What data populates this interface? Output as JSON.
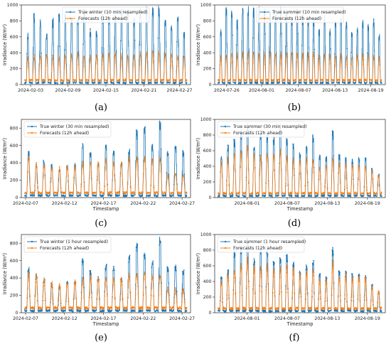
{
  "colors": {
    "true_series": "#1f77b4",
    "forecast_series": "#ff7f0e"
  },
  "chart_data": [
    {
      "type": "line",
      "panel": "(a)",
      "xlabel": "",
      "ylabel": "Irradiance (W/m²)",
      "ylim": [
        0,
        1000
      ],
      "yticks": [
        0,
        200,
        400,
        600,
        800,
        1000
      ],
      "xtick_labels": [
        "2024-02-03",
        "2024-02-09",
        "2024-02-15",
        "2024-02-21",
        "2024-02-27"
      ],
      "x_start_label": "2024-02-02",
      "x_end_label": "2024-02-28",
      "legend_location": "top-center",
      "series": [
        {
          "name": "True winter (10 min resampled)",
          "daily_peaks": [
            660,
            900,
            820,
            640,
            840,
            900,
            900,
            850,
            830,
            960,
            700,
            680,
            890,
            870,
            940,
            960,
            980,
            840,
            970,
            990,
            980,
            990,
            820,
            760,
            870,
            660
          ]
        },
        {
          "name": "Forecasts (12h ahead)",
          "daily_peaks": [
            360,
            380,
            390,
            400,
            370,
            380,
            390,
            400,
            420,
            380,
            370,
            390,
            400,
            410,
            420,
            400,
            380,
            390,
            420,
            440,
            460,
            430,
            420,
            400,
            390,
            380
          ]
        }
      ]
    },
    {
      "type": "line",
      "panel": "(b)",
      "xlabel": "",
      "ylabel": "Irradiance (W/m²)",
      "ylim": [
        0,
        1000
      ],
      "yticks": [
        0,
        200,
        400,
        600,
        800,
        1000
      ],
      "xtick_labels": [
        "2024-07-26",
        "2024-08-01",
        "2024-08-07",
        "2024-08-13",
        "2024-08-19"
      ],
      "x_start_label": "2024-07-22",
      "x_end_label": "2024-08-21",
      "legend_location": "top-center",
      "series": [
        {
          "name": "True summer (10 min resampled)",
          "daily_peaks": [
            700,
            980,
            950,
            820,
            1000,
            990,
            970,
            1000,
            960,
            940,
            880,
            990,
            920,
            870,
            960,
            880,
            860,
            840,
            700,
            860,
            720,
            800,
            860,
            790,
            680,
            720,
            820,
            780,
            840,
            640
          ]
        },
        {
          "name": "Forecasts (12h ahead)",
          "daily_peaks": [
            380,
            400,
            420,
            410,
            430,
            420,
            440,
            430,
            420,
            440,
            410,
            420,
            430,
            440,
            420,
            410,
            400,
            420,
            380,
            400,
            390,
            380,
            400,
            390,
            380,
            390,
            400,
            390,
            380,
            370
          ]
        }
      ]
    },
    {
      "type": "line",
      "panel": "(c)",
      "xlabel": "Timestamp",
      "ylabel": "Irradiance (W/m²)",
      "ylim": [
        0,
        900
      ],
      "yticks": [
        0,
        200,
        400,
        600,
        800
      ],
      "xtick_labels": [
        "2024-02-07",
        "2024-02-12",
        "2024-02-17",
        "2024-02-22",
        "2024-02-27"
      ],
      "x_start_label": "2024-02-07",
      "x_end_label": "2024-02-28",
      "legend_location": "top-left",
      "series": [
        {
          "name": "True winter (30 min resampled)",
          "daily_peaks": [
            540,
            390,
            440,
            390,
            330,
            380,
            400,
            640,
            520,
            420,
            620,
            560,
            420,
            560,
            780,
            820,
            620,
            900,
            560,
            590,
            540
          ]
        },
        {
          "name": "Forecasts (12h ahead)",
          "daily_peaks": [
            500,
            420,
            400,
            360,
            360,
            380,
            390,
            420,
            450,
            420,
            460,
            440,
            420,
            470,
            480,
            500,
            470,
            480,
            280,
            300,
            280
          ]
        }
      ]
    },
    {
      "type": "line",
      "panel": "(d)",
      "xlabel": "Timestamp",
      "ylabel": "Irradiance (W/m²)",
      "ylim": [
        0,
        1000
      ],
      "yticks": [
        0,
        200,
        400,
        600,
        800,
        1000
      ],
      "xtick_labels": [
        "2024-08-01",
        "2024-08-07",
        "2024-08-13",
        "2024-08-19"
      ],
      "x_start_label": "2024-07-28",
      "x_end_label": "2024-08-22",
      "legend_location": "top-left",
      "series": [
        {
          "name": "True summer (30 min resampled)",
          "daily_peaks": [
            540,
            680,
            750,
            880,
            960,
            690,
            860,
            820,
            790,
            950,
            770,
            700,
            580,
            670,
            820,
            560,
            540,
            860,
            560,
            520,
            500,
            520,
            520,
            380,
            300
          ]
        },
        {
          "name": "Forecasts (12h ahead)",
          "daily_peaks": [
            480,
            520,
            580,
            620,
            700,
            580,
            560,
            600,
            590,
            640,
            570,
            540,
            500,
            520,
            520,
            430,
            420,
            520,
            460,
            470,
            440,
            430,
            420,
            360,
            300
          ]
        }
      ]
    },
    {
      "type": "line",
      "panel": "(e)",
      "xlabel": "Timestamp",
      "ylabel": "Irradiance (W/m²)",
      "ylim": [
        0,
        900
      ],
      "yticks": [
        0,
        200,
        400,
        600,
        800
      ],
      "xtick_labels": [
        "2024-02-07",
        "2024-02-12",
        "2024-02-17",
        "2024-02-22",
        "2024-02-27"
      ],
      "x_start_label": "2024-02-07",
      "x_end_label": "2024-02-28",
      "legend_location": "top-left",
      "series": [
        {
          "name": "True winter (1 hour resampled)",
          "daily_peaks": [
            530,
            450,
            380,
            340,
            310,
            370,
            380,
            630,
            500,
            420,
            560,
            540,
            410,
            660,
            820,
            700,
            610,
            900,
            540,
            560,
            500
          ]
        },
        {
          "name": "Forecasts (12h ahead)",
          "daily_peaks": [
            480,
            470,
            420,
            380,
            360,
            380,
            390,
            410,
            440,
            430,
            440,
            420,
            410,
            480,
            500,
            520,
            470,
            480,
            300,
            290,
            280
          ]
        }
      ]
    },
    {
      "type": "line",
      "panel": "(f)",
      "xlabel": "Timestamp",
      "ylabel": "Irradiance (W/m²)",
      "ylim": [
        0,
        1000
      ],
      "yticks": [
        0,
        200,
        400,
        600,
        800,
        1000
      ],
      "xtick_labels": [
        "2024-08-01",
        "2024-08-07",
        "2024-08-13",
        "2024-08-19"
      ],
      "x_start_label": "2024-07-28",
      "x_end_label": "2024-08-22",
      "legend_location": "top-left",
      "series": [
        {
          "name": "True summer (1 hour resampled)",
          "daily_peaks": [
            460,
            560,
            820,
            860,
            960,
            690,
            850,
            820,
            660,
            730,
            760,
            660,
            540,
            630,
            680,
            510,
            470,
            840,
            560,
            540,
            500,
            520,
            490,
            370,
            280
          ]
        },
        {
          "name": "Forecasts (12h ahead)",
          "daily_peaks": [
            440,
            520,
            600,
            660,
            740,
            620,
            620,
            640,
            600,
            620,
            640,
            600,
            520,
            560,
            600,
            460,
            440,
            680,
            500,
            520,
            480,
            500,
            470,
            360,
            300
          ]
        }
      ]
    }
  ]
}
